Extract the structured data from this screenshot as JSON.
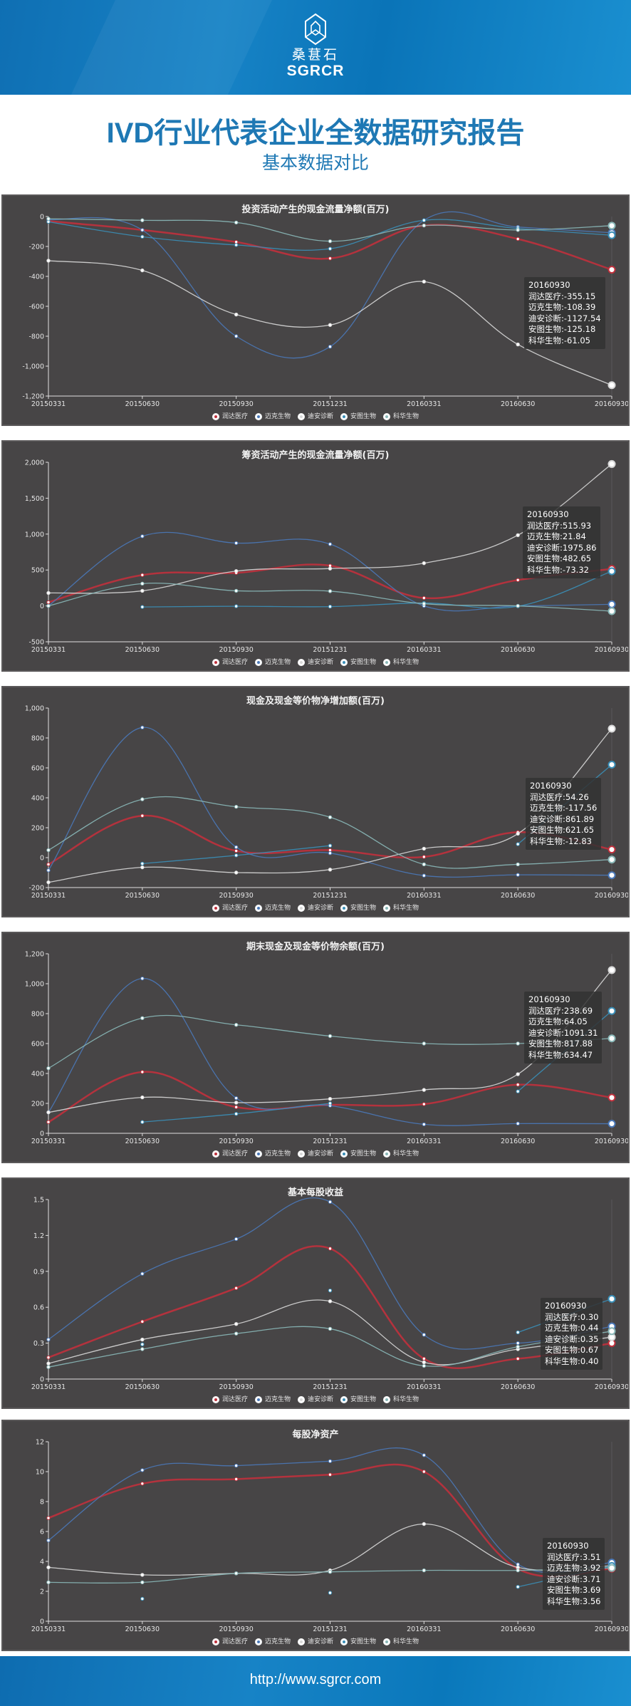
{
  "header": {
    "brand_cn": "桑葚石",
    "brand_en": "SGRCR"
  },
  "title": {
    "main": "IVD行业代表企业全数据研究报告",
    "sub": "基本数据对比"
  },
  "footer": {
    "url": "http://www.sgrcr.com"
  },
  "series_colors": {
    "润达医疗": "#c0303c",
    "迈克生物": "#4a78b8",
    "迪安诊断": "#d8d8d8",
    "安图生物": "#3a8fb8",
    "科华生物": "#8ab8b8"
  },
  "legend": [
    "润达医疗",
    "迈克生物",
    "迪安诊断",
    "安图生物",
    "科华生物"
  ],
  "chart_data": [
    {
      "type": "line",
      "title": "投资活动产生的现金流量净额(百万)",
      "categories": [
        "20150331",
        "20150630",
        "20150930",
        "20151231",
        "20160331",
        "20160630",
        "20160930"
      ],
      "yticks": [
        "0",
        "-200",
        "-400",
        "-600",
        "-800",
        "-1,000",
        "-1,200"
      ],
      "ylim": [
        -1200,
        0
      ],
      "series": [
        {
          "name": "润达医疗",
          "values": [
            -30,
            -90,
            -170,
            -280,
            -60,
            -150,
            -355.15
          ]
        },
        {
          "name": "迈克生物",
          "values": [
            -20,
            -90,
            -800,
            -870,
            -25,
            -70,
            -108.39
          ]
        },
        {
          "name": "迪安诊断",
          "values": [
            -295,
            -360,
            -655,
            -725,
            -435,
            -855,
            -1127.54
          ]
        },
        {
          "name": "安图生物",
          "values": [
            -35,
            -135,
            -190,
            -215,
            -25,
            -80,
            -125.18
          ]
        },
        {
          "name": "科华生物",
          "values": [
            -15,
            -25,
            -40,
            -165,
            -60,
            -90,
            -61.05
          ]
        }
      ],
      "tooltip": {
        "date": "20160930",
        "lines": [
          "润达医疗:-355.15",
          "迈克生物:-108.39",
          "迪安诊断:-1127.54",
          "安图生物:-125.18",
          "科华生物:-61.05"
        ]
      }
    },
    {
      "type": "line",
      "title": "筹资活动产生的现金流量净额(百万)",
      "categories": [
        "20150331",
        "20150630",
        "20150930",
        "20151231",
        "20160331",
        "20160630",
        "20160930"
      ],
      "yticks": [
        "2,000",
        "1,500",
        "1,000",
        "500",
        "0",
        "-500"
      ],
      "ylim": [
        -500,
        2000
      ],
      "series": [
        {
          "name": "润达医疗",
          "values": [
            50,
            430,
            460,
            560,
            110,
            360,
            515.93
          ]
        },
        {
          "name": "迈克生物",
          "values": [
            0,
            970,
            875,
            860,
            0,
            0,
            21.84
          ]
        },
        {
          "name": "迪安诊断",
          "values": [
            180,
            210,
            485,
            520,
            595,
            985,
            1975.86
          ]
        },
        {
          "name": "安图生物",
          "values": [
            null,
            -15,
            -5,
            -10,
            40,
            -5,
            482.65
          ]
        },
        {
          "name": "科华生物",
          "values": [
            0,
            310,
            210,
            205,
            30,
            0,
            -73.32
          ]
        }
      ],
      "tooltip": {
        "date": "20160930",
        "lines": [
          "润达医疗:515.93",
          "迈克生物:21.84",
          "迪安诊断:1975.86",
          "安图生物:482.65",
          "科华生物:-73.32"
        ]
      }
    },
    {
      "type": "line",
      "title": "现金及现金等价物净增加额(百万)",
      "categories": [
        "20150331",
        "20150630",
        "20150930",
        "20151231",
        "20160331",
        "20160630",
        "20160930"
      ],
      "yticks": [
        "1,000",
        "800",
        "600",
        "400",
        "200",
        "0",
        "-200"
      ],
      "ylim": [
        -200,
        1000
      ],
      "series": [
        {
          "name": "润达医疗",
          "values": [
            -45,
            280,
            45,
            50,
            5,
            170,
            54.26
          ]
        },
        {
          "name": "迈克生物",
          "values": [
            -85,
            870,
            70,
            30,
            -120,
            -115,
            -117.56
          ]
        },
        {
          "name": "迪安诊断",
          "values": [
            -165,
            -65,
            -100,
            -80,
            60,
            160,
            861.89
          ]
        },
        {
          "name": "安图生物",
          "values": [
            null,
            -40,
            15,
            80,
            null,
            90,
            621.65
          ]
        },
        {
          "name": "科华生物",
          "values": [
            50,
            390,
            340,
            270,
            -45,
            -45,
            -12.83
          ]
        }
      ],
      "tooltip": {
        "date": "20160930",
        "lines": [
          "润达医疗:54.26",
          "迈克生物:-117.56",
          "迪安诊断:861.89",
          "安图生物:621.65",
          "科华生物:-12.83"
        ]
      }
    },
    {
      "type": "line",
      "title": "期末现金及现金等价物余额(百万)",
      "categories": [
        "20150331",
        "20150630",
        "20150930",
        "20151231",
        "20160331",
        "20160630",
        "20160930"
      ],
      "yticks": [
        "1,200",
        "1,000",
        "800",
        "600",
        "400",
        "200",
        "0"
      ],
      "ylim": [
        0,
        1200
      ],
      "series": [
        {
          "name": "润达医疗",
          "values": [
            75,
            410,
            175,
            190,
            195,
            325,
            238.69
          ]
        },
        {
          "name": "迈克生物",
          "values": [
            140,
            1035,
            235,
            185,
            60,
            65,
            64.05
          ]
        },
        {
          "name": "迪安诊断",
          "values": [
            140,
            240,
            205,
            230,
            290,
            395,
            1091.31
          ]
        },
        {
          "name": "安图生物",
          "values": [
            null,
            75,
            130,
            200,
            null,
            280,
            817.88
          ]
        },
        {
          "name": "科华生物",
          "values": [
            435,
            770,
            725,
            650,
            600,
            600,
            634.47
          ]
        }
      ],
      "tooltip": {
        "date": "20160930",
        "lines": [
          "润达医疗:238.69",
          "迈克生物:64.05",
          "迪安诊断:1091.31",
          "安图生物:817.88",
          "科华生物:634.47"
        ]
      }
    },
    {
      "type": "line",
      "title": "基本每股收益",
      "categories": [
        "20150331",
        "20150630",
        "20150930",
        "20151231",
        "20160331",
        "20160630",
        "20160930"
      ],
      "yticks": [
        "1.5",
        "1.2",
        "0.9",
        "0.6",
        "0.3",
        "0"
      ],
      "ylim": [
        0,
        1.5
      ],
      "series": [
        {
          "name": "润达医疗",
          "values": [
            0.18,
            0.48,
            0.76,
            1.09,
            0.17,
            0.17,
            0.3
          ]
        },
        {
          "name": "迈克生物",
          "values": [
            0.33,
            0.88,
            1.17,
            1.48,
            0.37,
            0.3,
            0.44
          ]
        },
        {
          "name": "迪安诊断",
          "values": [
            0.13,
            0.33,
            0.46,
            0.65,
            0.14,
            0.25,
            0.35
          ]
        },
        {
          "name": "安图生物",
          "values": [
            null,
            0.29,
            null,
            0.74,
            null,
            0.39,
            0.67
          ]
        },
        {
          "name": "科华生物",
          "values": [
            0.1,
            0.25,
            0.38,
            0.42,
            0.11,
            0.27,
            0.4
          ]
        }
      ],
      "tooltip": {
        "date": "20160930",
        "lines": [
          "润达医疗:0.30",
          "迈克生物:0.44",
          "迪安诊断:0.35",
          "安图生物:0.67",
          "科华生物:0.40"
        ]
      }
    },
    {
      "type": "line",
      "title": "每股净资产",
      "categories": [
        "20150331",
        "20150630",
        "20150930",
        "20151231",
        "20160331",
        "20160630",
        "20160930"
      ],
      "yticks": [
        "12",
        "10",
        "8",
        "6",
        "4",
        "2",
        "0"
      ],
      "ylim": [
        0,
        12
      ],
      "series": [
        {
          "name": "润达医疗",
          "values": [
            6.9,
            9.2,
            9.5,
            9.8,
            10.0,
            3.5,
            3.51
          ]
        },
        {
          "name": "迈克生物",
          "values": [
            5.4,
            10.1,
            10.4,
            10.7,
            11.1,
            3.8,
            3.92
          ]
        },
        {
          "name": "迪安诊断",
          "values": [
            3.6,
            3.1,
            3.2,
            3.4,
            6.5,
            3.6,
            3.71
          ]
        },
        {
          "name": "安图生物",
          "values": [
            null,
            1.5,
            null,
            1.9,
            null,
            2.3,
            3.69
          ]
        },
        {
          "name": "科华生物",
          "values": [
            2.6,
            2.6,
            3.2,
            3.3,
            3.4,
            3.4,
            3.56
          ]
        }
      ],
      "tooltip": {
        "date": "20160930",
        "lines": [
          "润达医疗:3.51",
          "迈克生物:3.92",
          "迪安诊断:3.71",
          "安图生物:3.69",
          "科华生物:3.56"
        ]
      }
    }
  ]
}
